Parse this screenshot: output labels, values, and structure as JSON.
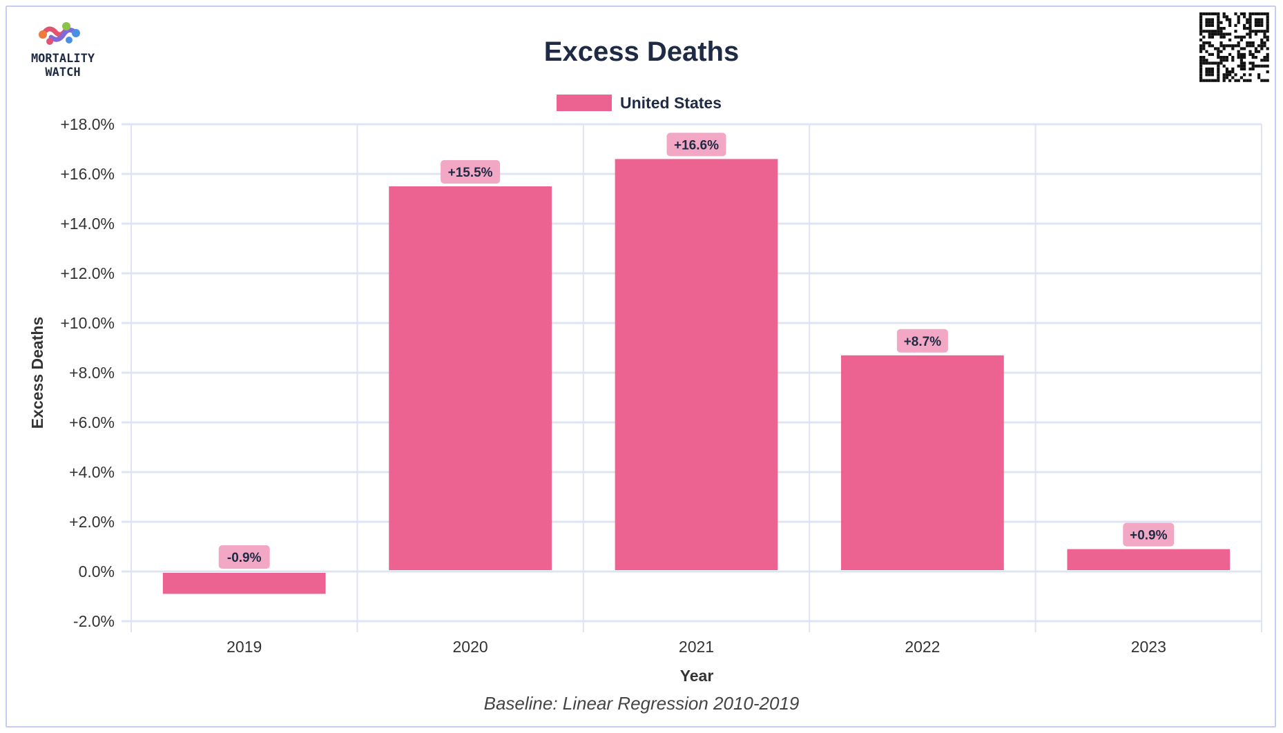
{
  "brand": {
    "line1": "MORTALITY",
    "line2": "WATCH"
  },
  "colors": {
    "bar": "#ec6291",
    "label_bg": "#f2a7c4",
    "grid": "#dfe3f4",
    "axis_text": "#333333",
    "title": "#1f2a44",
    "frame": "#c7cdf2"
  },
  "icons": {
    "logo": "mortality-watch-logo-icon",
    "qr": "qr-code-icon"
  },
  "chart_data": {
    "type": "bar",
    "title": "Excess Deaths",
    "xlabel": "Year",
    "ylabel": "Excess Deaths",
    "footnote": "Baseline: Linear Regression 2010-2019",
    "categories": [
      "2019",
      "2020",
      "2021",
      "2022",
      "2023"
    ],
    "series": [
      {
        "name": "United States",
        "values": [
          -0.9,
          15.5,
          16.6,
          8.7,
          0.9
        ],
        "labels": [
          "-0.9%",
          "+15.5%",
          "+16.6%",
          "+8.7%",
          "+0.9%"
        ]
      }
    ],
    "ylim": [
      -2,
      18
    ],
    "yticks": [
      {
        "value": 18,
        "label": "+18.0%"
      },
      {
        "value": 16,
        "label": "+16.0%"
      },
      {
        "value": 14,
        "label": "+14.0%"
      },
      {
        "value": 12,
        "label": "+12.0%"
      },
      {
        "value": 10,
        "label": "+10.0%"
      },
      {
        "value": 8,
        "label": "+8.0%"
      },
      {
        "value": 6,
        "label": "+6.0%"
      },
      {
        "value": 4,
        "label": "+4.0%"
      },
      {
        "value": 2,
        "label": "+2.0%"
      },
      {
        "value": 0,
        "label": "0.0%"
      },
      {
        "value": -2,
        "label": "-2.0%"
      }
    ],
    "grid": true,
    "legend_position": "top-center"
  }
}
